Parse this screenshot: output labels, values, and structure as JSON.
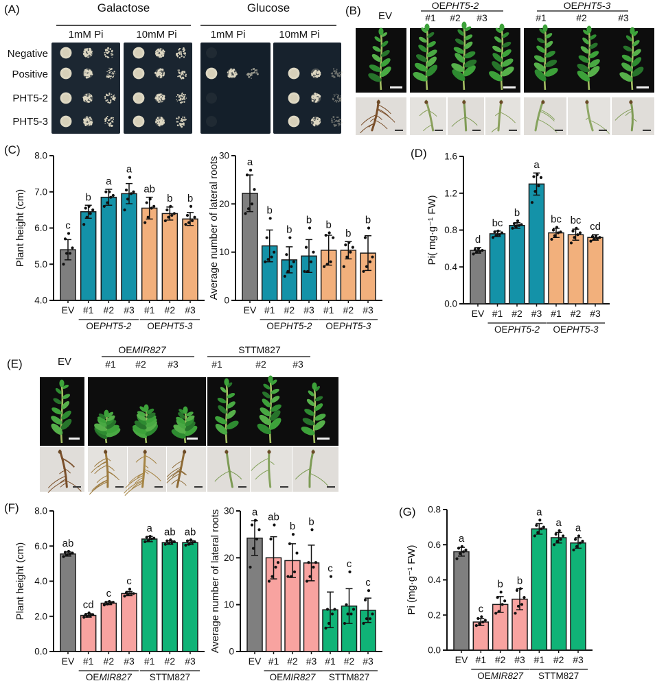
{
  "panels": {
    "A": {
      "label": "(A)",
      "titles": [
        "Galactose",
        "Glucose"
      ],
      "col_labels": [
        "1mM Pi",
        "10mM Pi",
        "1mM Pi",
        "10mM Pi"
      ],
      "row_labels": [
        "Negative",
        "Positive",
        "PHT5-2",
        "PHT5-3"
      ],
      "spots_per_row_per_plate": [
        [
          3,
          3,
          3,
          3
        ],
        [
          3,
          3,
          3,
          3
        ],
        [
          0,
          3,
          0,
          0
        ],
        [
          0,
          3,
          3,
          3
        ]
      ]
    },
    "B": {
      "label": "(B)",
      "ev_label": "EV",
      "groups": [
        {
          "prefix": "OE",
          "gene": "PHT5-2",
          "reps": [
            "#1",
            "#2",
            "#3"
          ]
        },
        {
          "prefix": "OE",
          "gene": "PHT5-3",
          "reps": [
            "#1",
            "#2",
            "#3"
          ]
        }
      ]
    },
    "C": {
      "label": "(C)"
    },
    "D": {
      "label": "(D)"
    },
    "E": {
      "label": "(E)",
      "ev_label": "EV",
      "groups": [
        {
          "prefix": "OE",
          "gene": "MIR827",
          "reps": [
            "#1",
            "#2",
            "#3"
          ]
        },
        {
          "prefix": "STTM827",
          "gene": "",
          "reps": [
            "#1",
            "#2",
            "#3"
          ]
        }
      ]
    },
    "F": {
      "label": "(F)"
    },
    "G": {
      "label": "(G)"
    }
  },
  "colors": {
    "gray": "#7f7f7f",
    "teal": "#1492a8",
    "orange": "#f2b07c",
    "pink": "#f8a3a0",
    "green": "#10b377",
    "outline": "#1a1a1a"
  },
  "chart_data": [
    {
      "id": "C_plant_height",
      "panel": "C",
      "type": "bar",
      "ylabel": "Plant height (cm)",
      "ymin": 4,
      "ymax": 8,
      "yticks": [
        "4.0",
        "5.0",
        "6.0",
        "7.0",
        "8.0"
      ],
      "categories": [
        "EV",
        "#1",
        "#2",
        "#3",
        "#1",
        "#2",
        "#3"
      ],
      "bars": [
        {
          "label": "EV",
          "value": 5.4,
          "err": 0.28,
          "letter": "c",
          "color": "gray",
          "points": [
            5.0,
            5.3,
            5.3,
            5.45,
            5.7,
            5.85
          ]
        },
        {
          "label": "#1",
          "value": 6.45,
          "err": 0.18,
          "letter": "b",
          "color": "teal",
          "points": [
            6.1,
            6.3,
            6.4,
            6.5,
            6.55,
            6.6
          ]
        },
        {
          "label": "#2",
          "value": 6.85,
          "err": 0.22,
          "letter": "a",
          "color": "teal",
          "points": [
            6.6,
            6.7,
            6.85,
            6.9,
            7.0,
            7.0
          ]
        },
        {
          "label": "#3",
          "value": 6.95,
          "err": 0.28,
          "letter": "a",
          "color": "teal",
          "points": [
            6.5,
            6.8,
            6.95,
            7.0,
            7.05,
            7.4
          ]
        },
        {
          "label": "#1",
          "value": 6.55,
          "err": 0.3,
          "letter": "ab",
          "color": "orange",
          "points": [
            6.15,
            6.3,
            6.55,
            6.6,
            6.7,
            6.8
          ]
        },
        {
          "label": "#2",
          "value": 6.4,
          "err": 0.18,
          "letter": "b",
          "color": "orange",
          "points": [
            6.2,
            6.3,
            6.35,
            6.4,
            6.5,
            6.6
          ]
        },
        {
          "label": "#3",
          "value": 6.25,
          "err": 0.18,
          "letter": "b",
          "color": "orange",
          "points": [
            6.1,
            6.15,
            6.2,
            6.3,
            6.35,
            6.6
          ]
        }
      ],
      "groups": [
        {
          "prefix": "OE",
          "gene": "PHT5-2",
          "from": 1,
          "to": 3
        },
        {
          "prefix": "OE",
          "gene": "PHT5-3",
          "from": 4,
          "to": 6
        }
      ]
    },
    {
      "id": "C_lateral_roots",
      "panel": "C",
      "type": "bar",
      "ylabel": "Average number of lateral roots",
      "ymin": 0,
      "ymax": 30,
      "yticks": [
        "0",
        "10",
        "20",
        "30"
      ],
      "categories": [
        "EV",
        "#1",
        "#2",
        "#3",
        "#1",
        "#2",
        "#3"
      ],
      "bars": [
        {
          "label": "EV",
          "value": 22.2,
          "err": 3.8,
          "letter": "a",
          "color": "gray",
          "points": [
            18,
            19,
            20,
            23,
            26,
            27
          ]
        },
        {
          "label": "#1",
          "value": 11.3,
          "err": 3.3,
          "letter": "b",
          "color": "teal",
          "points": [
            8,
            8.5,
            9,
            10,
            13,
            17
          ]
        },
        {
          "label": "#2",
          "value": 8.4,
          "err": 2.7,
          "letter": "b",
          "color": "teal",
          "points": [
            5,
            6,
            7,
            8,
            9.5,
            13
          ]
        },
        {
          "label": "#3",
          "value": 9.2,
          "err": 3.4,
          "letter": "b",
          "color": "teal",
          "points": [
            6,
            6,
            8,
            10,
            11,
            15
          ]
        },
        {
          "label": "#1",
          "value": 10.4,
          "err": 3.1,
          "letter": "b",
          "color": "orange",
          "points": [
            7,
            7.5,
            8,
            13,
            13.5,
            14
          ]
        },
        {
          "label": "#2",
          "value": 10.4,
          "err": 1.8,
          "letter": "b",
          "color": "orange",
          "points": [
            7,
            9,
            10,
            11,
            11.5,
            12
          ]
        },
        {
          "label": "#3",
          "value": 9.8,
          "err": 3.6,
          "letter": "b",
          "color": "orange",
          "points": [
            6,
            7,
            8,
            9,
            13,
            15
          ]
        }
      ],
      "groups": [
        {
          "prefix": "OE",
          "gene": "PHT5-2",
          "from": 1,
          "to": 3
        },
        {
          "prefix": "OE",
          "gene": "PHT5-3",
          "from": 4,
          "to": 6
        }
      ]
    },
    {
      "id": "D_pi",
      "panel": "D",
      "type": "bar",
      "ylabel": "Pi( mg·g⁻¹ FW)",
      "ymin": 0,
      "ymax": 1.6,
      "yticks": [
        "0.0",
        "0.4",
        "0.8",
        "1.2",
        "1.6"
      ],
      "categories": [
        "EV",
        "#1",
        "#2",
        "#3",
        "#1",
        "#2",
        "#3"
      ],
      "bars": [
        {
          "label": "EV",
          "value": 0.58,
          "err": 0.03,
          "letter": "d",
          "color": "gray",
          "points": [
            0.54,
            0.56,
            0.57,
            0.58,
            0.59,
            0.6
          ]
        },
        {
          "label": "#1",
          "value": 0.76,
          "err": 0.03,
          "letter": "bc",
          "color": "teal",
          "points": [
            0.72,
            0.74,
            0.75,
            0.77,
            0.78,
            0.79
          ]
        },
        {
          "label": "#2",
          "value": 0.85,
          "err": 0.03,
          "letter": "b",
          "color": "teal",
          "points": [
            0.82,
            0.84,
            0.85,
            0.86,
            0.87,
            0.9
          ]
        },
        {
          "label": "#3",
          "value": 1.3,
          "err": 0.12,
          "letter": "a",
          "color": "teal",
          "points": [
            1.1,
            1.22,
            1.28,
            1.37,
            1.38,
            1.4
          ]
        },
        {
          "label": "#1",
          "value": 0.77,
          "err": 0.05,
          "letter": "bc",
          "color": "orange",
          "points": [
            0.7,
            0.74,
            0.77,
            0.78,
            0.8,
            0.83
          ]
        },
        {
          "label": "#2",
          "value": 0.75,
          "err": 0.06,
          "letter": "bc",
          "color": "orange",
          "points": [
            0.66,
            0.72,
            0.75,
            0.77,
            0.79,
            0.82
          ]
        },
        {
          "label": "#3",
          "value": 0.72,
          "err": 0.03,
          "letter": "cd",
          "color": "orange",
          "points": [
            0.68,
            0.7,
            0.71,
            0.72,
            0.73,
            0.74
          ]
        }
      ],
      "groups": [
        {
          "prefix": "OE",
          "gene": "PHT5-2",
          "from": 1,
          "to": 3
        },
        {
          "prefix": "OE",
          "gene": "PHT5-3",
          "from": 4,
          "to": 6
        }
      ]
    },
    {
      "id": "F_plant_height",
      "panel": "F",
      "type": "bar",
      "ylabel": "Plant height (cm)",
      "ymin": 0,
      "ymax": 8,
      "yticks": [
        "0.0",
        "2.0",
        "4.0",
        "6.0",
        "8.0"
      ],
      "categories": [
        "EV",
        "#1",
        "#2",
        "#3",
        "#1",
        "#2",
        "#3"
      ],
      "bars": [
        {
          "label": "EV",
          "value": 5.55,
          "err": 0.12,
          "letter": "ab",
          "color": "gray",
          "points": [
            5.4,
            5.5,
            5.55,
            5.6,
            5.65,
            5.7
          ]
        },
        {
          "label": "#1",
          "value": 2.05,
          "err": 0.1,
          "letter": "cd",
          "color": "pink",
          "points": [
            1.95,
            2.0,
            2.05,
            2.1,
            2.1,
            2.2
          ]
        },
        {
          "label": "#2",
          "value": 2.75,
          "err": 0.08,
          "letter": "c",
          "color": "pink",
          "points": [
            2.65,
            2.7,
            2.75,
            2.8,
            2.8,
            2.85
          ]
        },
        {
          "label": "#3",
          "value": 3.3,
          "err": 0.12,
          "letter": "c",
          "color": "pink",
          "points": [
            3.15,
            3.25,
            3.3,
            3.3,
            3.35,
            3.55
          ]
        },
        {
          "label": "#1",
          "value": 6.4,
          "err": 0.15,
          "letter": "a",
          "color": "green",
          "points": [
            6.25,
            6.3,
            6.4,
            6.45,
            6.5,
            6.55
          ]
        },
        {
          "label": "#2",
          "value": 6.2,
          "err": 0.1,
          "letter": "ab",
          "color": "green",
          "points": [
            6.1,
            6.15,
            6.2,
            6.25,
            6.3,
            6.35
          ]
        },
        {
          "label": "#3",
          "value": 6.2,
          "err": 0.12,
          "letter": "ab",
          "color": "green",
          "points": [
            6.05,
            6.1,
            6.2,
            6.25,
            6.3,
            6.35
          ]
        }
      ],
      "groups": [
        {
          "prefix": "OE",
          "gene": "MIR827",
          "from": 1,
          "to": 3
        },
        {
          "prefix": "STTM827",
          "gene": "",
          "from": 4,
          "to": 6
        }
      ]
    },
    {
      "id": "F_lateral_roots",
      "panel": "F",
      "type": "bar",
      "ylabel": "Average number of lateral roots",
      "ymin": 0,
      "ymax": 30,
      "yticks": [
        "0",
        "10",
        "20",
        "30"
      ],
      "categories": [
        "EV",
        "#1",
        "#2",
        "#3",
        "#1",
        "#2",
        "#3"
      ],
      "bars": [
        {
          "label": "EV",
          "value": 24.2,
          "err": 3.7,
          "letter": "a",
          "color": "gray",
          "points": [
            18,
            22,
            24,
            26,
            27,
            28
          ]
        },
        {
          "label": "#1",
          "value": 20.0,
          "err": 4.5,
          "letter": "ab",
          "color": "pink",
          "points": [
            15,
            16,
            18,
            19,
            24,
            27
          ]
        },
        {
          "label": "#2",
          "value": 19.4,
          "err": 3.6,
          "letter": "b",
          "color": "pink",
          "points": [
            16,
            16,
            17,
            21,
            23,
            25
          ]
        },
        {
          "label": "#3",
          "value": 18.9,
          "err": 3.8,
          "letter": "b",
          "color": "pink",
          "points": [
            15,
            16,
            18,
            19,
            19,
            26
          ]
        },
        {
          "label": "#1",
          "value": 8.9,
          "err": 3.8,
          "letter": "c",
          "color": "green",
          "points": [
            5,
            6,
            8,
            9,
            9,
            16
          ]
        },
        {
          "label": "#2",
          "value": 9.7,
          "err": 3.7,
          "letter": "c",
          "color": "green",
          "points": [
            6,
            8,
            8,
            9,
            10,
            17
          ]
        },
        {
          "label": "#3",
          "value": 8.8,
          "err": 2.6,
          "letter": "c",
          "color": "green",
          "points": [
            6,
            7,
            7,
            8,
            11,
            13
          ]
        }
      ],
      "groups": [
        {
          "prefix": "OE",
          "gene": "MIR827",
          "from": 1,
          "to": 3
        },
        {
          "prefix": "STTM827",
          "gene": "",
          "from": 4,
          "to": 6
        }
      ]
    },
    {
      "id": "G_pi",
      "panel": "G",
      "type": "bar",
      "ylabel": "Pi (mg·g⁻¹ FW)",
      "ymin": 0,
      "ymax": 0.8,
      "yticks": [
        "0.0",
        "0.2",
        "0.4",
        "0.6",
        "0.8"
      ],
      "categories": [
        "EV",
        "#1",
        "#2",
        "#3",
        "#1",
        "#2",
        "#3"
      ],
      "bars": [
        {
          "label": "EV",
          "value": 0.56,
          "err": 0.025,
          "letter": "a",
          "color": "gray",
          "points": [
            0.52,
            0.55,
            0.56,
            0.57,
            0.58,
            0.59
          ]
        },
        {
          "label": "#1",
          "value": 0.16,
          "err": 0.02,
          "letter": "c",
          "color": "pink",
          "points": [
            0.14,
            0.15,
            0.16,
            0.17,
            0.18,
            0.19
          ]
        },
        {
          "label": "#2",
          "value": 0.26,
          "err": 0.045,
          "letter": "b",
          "color": "pink",
          "points": [
            0.21,
            0.22,
            0.26,
            0.28,
            0.3,
            0.33
          ]
        },
        {
          "label": "#3",
          "value": 0.29,
          "err": 0.06,
          "letter": "b",
          "color": "pink",
          "points": [
            0.21,
            0.25,
            0.26,
            0.3,
            0.34,
            0.35
          ]
        },
        {
          "label": "#1",
          "value": 0.69,
          "err": 0.03,
          "letter": "a",
          "color": "green",
          "points": [
            0.65,
            0.67,
            0.69,
            0.7,
            0.71,
            0.74
          ]
        },
        {
          "label": "#2",
          "value": 0.64,
          "err": 0.03,
          "letter": "a",
          "color": "green",
          "points": [
            0.6,
            0.62,
            0.63,
            0.65,
            0.66,
            0.68
          ]
        },
        {
          "label": "#3",
          "value": 0.61,
          "err": 0.03,
          "letter": "a",
          "color": "green",
          "points": [
            0.57,
            0.59,
            0.61,
            0.62,
            0.63,
            0.65
          ]
        }
      ],
      "groups": [
        {
          "prefix": "OE",
          "gene": "MIR827",
          "from": 1,
          "to": 3
        },
        {
          "prefix": "STTM827",
          "gene": "",
          "from": 4,
          "to": 6
        }
      ]
    }
  ]
}
